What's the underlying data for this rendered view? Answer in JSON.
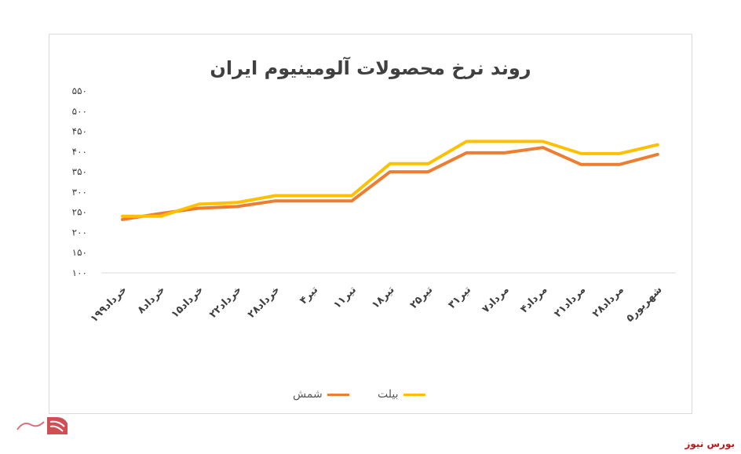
{
  "chart_data": {
    "type": "line",
    "title": "روند نرخ محصولات آلومینیوم ایران",
    "categories": [
      "۱خرداد۹۹",
      "۸خرداد",
      "۱۵خرداد",
      "۲۲خرداد",
      "۲۸خرداد",
      "۴تیر",
      "۱۱تیر",
      "۱۸تیر",
      "۲۵تیر",
      "۳۱تیر",
      "۷مرداد",
      "۴مرداد",
      "۲۱مرداد",
      "۲۸مرداد",
      "۵شهریور"
    ],
    "series": [
      {
        "name": "شمش",
        "color": "#ed7d31",
        "values": [
          232,
          247,
          260,
          264,
          278,
          278,
          278,
          350,
          350,
          397,
          397,
          410,
          368,
          368,
          393
        ]
      },
      {
        "name": "بیلت",
        "color": "#ffc000",
        "values": [
          240,
          240,
          270,
          274,
          291,
          291,
          291,
          370,
          370,
          425,
          425,
          425,
          395,
          395,
          417
        ]
      }
    ],
    "yticks": [
      "۱۰۰",
      "۱۵۰",
      "۲۰۰",
      "۲۵۰",
      "۳۰۰",
      "۳۵۰",
      "۴۰۰",
      "۴۵۰",
      "۵۰۰",
      "۵۵۰"
    ],
    "ylim": [
      100,
      550
    ],
    "grid": false,
    "legend_position": "bottom"
  },
  "legend": {
    "series1_label": "شمش",
    "series2_label": "بیلت"
  },
  "brand": {
    "text": "بورس نیوز",
    "color": "#c0141b"
  }
}
